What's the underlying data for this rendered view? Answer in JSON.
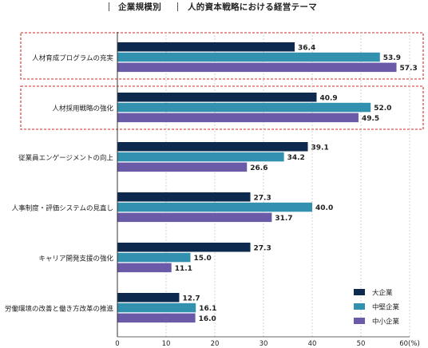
{
  "header": {
    "left_label": "企業規模別",
    "right_label": "人的資本戦略における経営テーマ"
  },
  "chart_data": {
    "type": "bar",
    "orientation": "horizontal",
    "categories": [
      "人材育成プログラムの充実",
      "人材採用戦略の強化",
      "従業員エンゲージメントの向上",
      "人事制度・評価システムの見直し",
      "キャリア開発支援の強化",
      "労働環境の改善と働き方改革の推進"
    ],
    "highlighted_categories": [
      0,
      1
    ],
    "series": [
      {
        "name": "大企業",
        "color": "#0d2a4e",
        "values": [
          36.4,
          40.9,
          39.1,
          27.3,
          27.3,
          12.7
        ]
      },
      {
        "name": "中堅企業",
        "color": "#3391b0",
        "values": [
          53.9,
          52.0,
          34.2,
          40.0,
          15.0,
          16.1
        ]
      },
      {
        "name": "中小企業",
        "color": "#6a5aa8",
        "values": [
          57.3,
          49.5,
          26.6,
          31.7,
          11.1,
          16.0
        ]
      }
    ],
    "xlim": [
      0,
      60
    ],
    "xticks": [
      "0",
      "10",
      "20",
      "30",
      "40",
      "50",
      "60(%)"
    ],
    "grid": "vertical-dashed",
    "legend_position": "bottom-right",
    "highlight_color": "#d42a2a"
  }
}
